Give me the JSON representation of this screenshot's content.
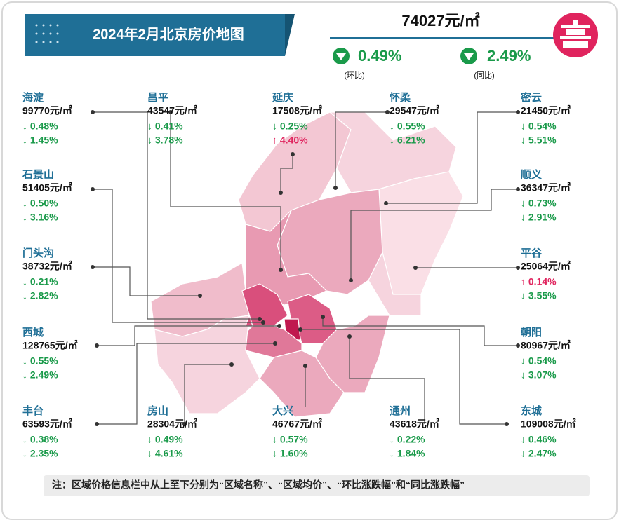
{
  "header": {
    "title": "2024年2月北京房价地图",
    "price": "74027元/㎡",
    "mom": "0.49%",
    "mom_label": "(环比)",
    "yoy": "2.49%",
    "yoy_label": "(同比)"
  },
  "districts": [
    {
      "name": "海淀",
      "price": "99770元/㎡",
      "mom": "↓ 0.48%",
      "yoy": "↓ 1.45%"
    },
    {
      "name": "昌平",
      "price": "43547元/㎡",
      "mom": "↓ 0.41%",
      "yoy": "↓ 3.78%"
    },
    {
      "name": "延庆",
      "price": "17508元/㎡",
      "mom": "↓ 0.25%",
      "yoy": "↑ 4.40%"
    },
    {
      "name": "怀柔",
      "price": "29547元/㎡",
      "mom": "↓ 0.55%",
      "yoy": "↓ 6.21%"
    },
    {
      "name": "密云",
      "price": "21450元/㎡",
      "mom": "↓ 0.54%",
      "yoy": "↓ 5.51%"
    },
    {
      "name": "石景山",
      "price": "51405元/㎡",
      "mom": "↓ 0.50%",
      "yoy": "↓ 3.16%"
    },
    {
      "name": "顺义",
      "price": "36347元/㎡",
      "mom": "↓ 0.73%",
      "yoy": "↓ 2.91%"
    },
    {
      "name": "门头沟",
      "price": "38732元/㎡",
      "mom": "↓ 0.21%",
      "yoy": "↓ 2.82%"
    },
    {
      "name": "平谷",
      "price": "25064元/㎡",
      "mom": "↑ 0.14%",
      "yoy": "↓ 3.55%"
    },
    {
      "name": "西城",
      "price": "128765元/㎡",
      "mom": "↓ 0.55%",
      "yoy": "↓ 2.49%"
    },
    {
      "name": "朝阳",
      "price": "80967元/㎡",
      "mom": "↓ 0.54%",
      "yoy": "↓ 3.07%"
    },
    {
      "name": "丰台",
      "price": "63593元/㎡",
      "mom": "↓ 0.38%",
      "yoy": "↓ 2.35%"
    },
    {
      "name": "房山",
      "price": "28304元/㎡",
      "mom": "↓ 0.49%",
      "yoy": "↓ 4.61%"
    },
    {
      "name": "大兴",
      "price": "46767元/㎡",
      "mom": "↓ 0.57%",
      "yoy": "↓ 1.60%"
    },
    {
      "name": "通州",
      "price": "43618元/㎡",
      "mom": "↓ 0.22%",
      "yoy": "↓ 1.84%"
    },
    {
      "name": "东城",
      "price": "109008元/㎡",
      "mom": "↓ 0.46%",
      "yoy": "↓ 2.47%"
    }
  ],
  "note": "注：区域价格信息栏中从上至下分别为“区域名称”、“区域均价”、“环比涨跌幅”和“同比涨跌幅”"
}
